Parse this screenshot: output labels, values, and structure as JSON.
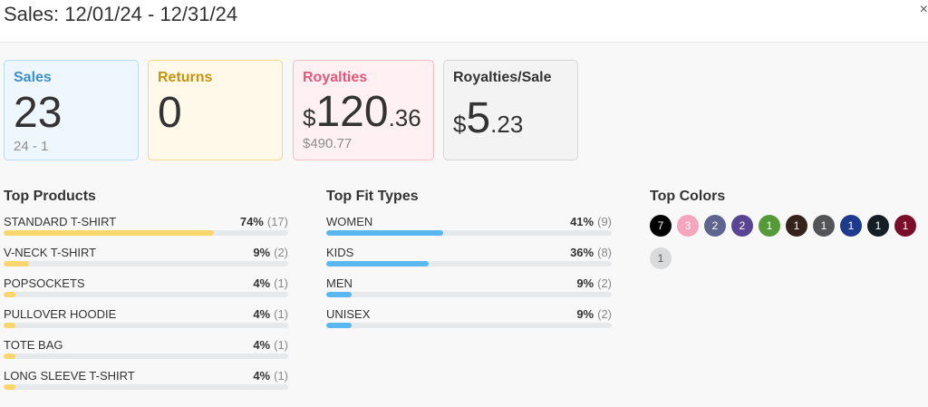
{
  "header": {
    "title": "Sales: 12/01/24 - 12/31/24",
    "close": "×"
  },
  "cards": {
    "sales": {
      "label": "Sales",
      "value": "23",
      "sub": "24 - 1"
    },
    "returns": {
      "label": "Returns",
      "value": "0"
    },
    "royalties": {
      "label": "Royalties",
      "currency": "$",
      "int": "120",
      "dec": ".36",
      "sub": "$490.77"
    },
    "royalties_per_sale": {
      "label": "Royalties/Sale",
      "currency": "$",
      "int": "5",
      "dec": ".23"
    }
  },
  "top_products": {
    "title": "Top Products",
    "items": [
      {
        "name": "STANDARD T-SHIRT",
        "pct": "74%",
        "count": "(17)",
        "fraction": 0.74
      },
      {
        "name": "V-NECK T-SHIRT",
        "pct": "9%",
        "count": "(2)",
        "fraction": 0.09
      },
      {
        "name": "POPSOCKETS",
        "pct": "4%",
        "count": "(1)",
        "fraction": 0.04
      },
      {
        "name": "PULLOVER HOODIE",
        "pct": "4%",
        "count": "(1)",
        "fraction": 0.04
      },
      {
        "name": "TOTE BAG",
        "pct": "4%",
        "count": "(1)",
        "fraction": 0.04
      },
      {
        "name": "LONG SLEEVE T-SHIRT",
        "pct": "4%",
        "count": "(1)",
        "fraction": 0.04
      }
    ]
  },
  "top_fit_types": {
    "title": "Top Fit Types",
    "items": [
      {
        "name": "WOMEN",
        "pct": "41%",
        "count": "(9)",
        "fraction": 0.41
      },
      {
        "name": "KIDS",
        "pct": "36%",
        "count": "(8)",
        "fraction": 0.36
      },
      {
        "name": "MEN",
        "pct": "9%",
        "count": "(2)",
        "fraction": 0.09
      },
      {
        "name": "UNISEX",
        "pct": "9%",
        "count": "(2)",
        "fraction": 0.09
      }
    ]
  },
  "top_colors": {
    "title": "Top Colors",
    "items": [
      {
        "count": "7",
        "color": "#000000",
        "text": "#ffffff"
      },
      {
        "count": "3",
        "color": "#f5a5be",
        "text": "#ffffff"
      },
      {
        "count": "2",
        "color": "#5e6690",
        "text": "#ffffff"
      },
      {
        "count": "2",
        "color": "#5a4594",
        "text": "#ffffff"
      },
      {
        "count": "1",
        "color": "#559a3a",
        "text": "#ffffff"
      },
      {
        "count": "1",
        "color": "#35231b",
        "text": "#ffffff"
      },
      {
        "count": "1",
        "color": "#535558",
        "text": "#ffffff"
      },
      {
        "count": "1",
        "color": "#1d3a8c",
        "text": "#ffffff"
      },
      {
        "count": "1",
        "color": "#151e25",
        "text": "#ffffff"
      },
      {
        "count": "1",
        "color": "#7a0d2a",
        "text": "#ffffff"
      },
      {
        "count": "1",
        "color": "#d8dadc",
        "text": "#555555"
      }
    ]
  }
}
